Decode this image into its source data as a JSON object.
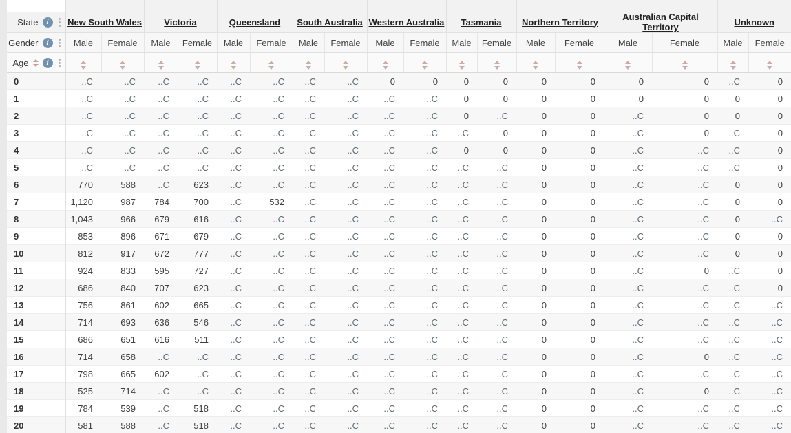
{
  "header": {
    "dims": [
      {
        "label": "State"
      },
      {
        "label": "Gender"
      },
      {
        "label": "Age"
      }
    ],
    "state_groups": [
      "New South Wales",
      "Victoria",
      "Queensland",
      "South Australia",
      "Western Australia",
      "Tasmania",
      "Northern Territory",
      "Australian Capital Territory",
      "Unknown"
    ],
    "gender_labels": [
      "Male",
      "Female"
    ]
  },
  "colors": {
    "info_icon": "#7191b1",
    "sort_idle": "#c9aca6",
    "sort_active": "#cb9a92",
    "header_bg": "#f2f2f2",
    "row_stripe": "#f7f7f7",
    "state_link": "#222222"
  },
  "confidential_marker": "..C",
  "table_rows": [
    {
      "age": "0",
      "values": [
        "..C",
        "..C",
        "..C",
        "..C",
        "..C",
        "..C",
        "..C",
        "..C",
        "0",
        "0",
        "0",
        "0",
        "0",
        "0",
        "0",
        "0",
        "..C",
        "0"
      ]
    },
    {
      "age": "1",
      "values": [
        "..C",
        "..C",
        "..C",
        "..C",
        "..C",
        "..C",
        "..C",
        "..C",
        "..C",
        "..C",
        "0",
        "0",
        "0",
        "0",
        "0",
        "0",
        "0",
        "0"
      ]
    },
    {
      "age": "2",
      "values": [
        "..C",
        "..C",
        "..C",
        "..C",
        "..C",
        "..C",
        "..C",
        "..C",
        "..C",
        "..C",
        "0",
        "..C",
        "0",
        "0",
        "..C",
        "0",
        "0",
        "0"
      ]
    },
    {
      "age": "3",
      "values": [
        "..C",
        "..C",
        "..C",
        "..C",
        "..C",
        "..C",
        "..C",
        "..C",
        "..C",
        "..C",
        "..C",
        "0",
        "0",
        "0",
        "..C",
        "0",
        "..C",
        "0"
      ]
    },
    {
      "age": "4",
      "values": [
        "..C",
        "..C",
        "..C",
        "..C",
        "..C",
        "..C",
        "..C",
        "..C",
        "..C",
        "..C",
        "0",
        "0",
        "0",
        "0",
        "..C",
        "..C",
        "..C",
        "0"
      ]
    },
    {
      "age": "5",
      "values": [
        "..C",
        "..C",
        "..C",
        "..C",
        "..C",
        "..C",
        "..C",
        "..C",
        "..C",
        "..C",
        "..C",
        "..C",
        "0",
        "0",
        "..C",
        "..C",
        "..C",
        "0"
      ]
    },
    {
      "age": "6",
      "values": [
        "770",
        "588",
        "..C",
        "623",
        "..C",
        "..C",
        "..C",
        "..C",
        "..C",
        "..C",
        "..C",
        "..C",
        "0",
        "0",
        "..C",
        "..C",
        "0",
        "0"
      ]
    },
    {
      "age": "7",
      "values": [
        "1,120",
        "987",
        "784",
        "700",
        "..C",
        "532",
        "..C",
        "..C",
        "..C",
        "..C",
        "..C",
        "..C",
        "0",
        "0",
        "..C",
        "..C",
        "0",
        "0"
      ]
    },
    {
      "age": "8",
      "values": [
        "1,043",
        "966",
        "679",
        "616",
        "..C",
        "..C",
        "..C",
        "..C",
        "..C",
        "..C",
        "..C",
        "..C",
        "0",
        "0",
        "..C",
        "..C",
        "0",
        "..C"
      ]
    },
    {
      "age": "9",
      "values": [
        "853",
        "896",
        "671",
        "679",
        "..C",
        "..C",
        "..C",
        "..C",
        "..C",
        "..C",
        "..C",
        "..C",
        "0",
        "0",
        "..C",
        "..C",
        "0",
        "0"
      ]
    },
    {
      "age": "10",
      "values": [
        "812",
        "917",
        "672",
        "777",
        "..C",
        "..C",
        "..C",
        "..C",
        "..C",
        "..C",
        "..C",
        "..C",
        "0",
        "0",
        "..C",
        "..C",
        "0",
        "0"
      ]
    },
    {
      "age": "11",
      "values": [
        "924",
        "833",
        "595",
        "727",
        "..C",
        "..C",
        "..C",
        "..C",
        "..C",
        "..C",
        "..C",
        "..C",
        "0",
        "0",
        "..C",
        "0",
        "..C",
        "0"
      ]
    },
    {
      "age": "12",
      "values": [
        "686",
        "840",
        "707",
        "623",
        "..C",
        "..C",
        "..C",
        "..C",
        "..C",
        "..C",
        "..C",
        "..C",
        "0",
        "0",
        "..C",
        "..C",
        "..C",
        "0"
      ]
    },
    {
      "age": "13",
      "values": [
        "756",
        "861",
        "602",
        "665",
        "..C",
        "..C",
        "..C",
        "..C",
        "..C",
        "..C",
        "..C",
        "..C",
        "0",
        "0",
        "..C",
        "..C",
        "..C",
        "..C"
      ]
    },
    {
      "age": "14",
      "values": [
        "714",
        "693",
        "636",
        "546",
        "..C",
        "..C",
        "..C",
        "..C",
        "..C",
        "..C",
        "..C",
        "..C",
        "0",
        "0",
        "..C",
        "..C",
        "..C",
        "..C"
      ]
    },
    {
      "age": "15",
      "values": [
        "686",
        "651",
        "616",
        "511",
        "..C",
        "..C",
        "..C",
        "..C",
        "..C",
        "..C",
        "..C",
        "..C",
        "0",
        "0",
        "..C",
        "..C",
        "..C",
        "..C"
      ]
    },
    {
      "age": "16",
      "values": [
        "714",
        "658",
        "..C",
        "..C",
        "..C",
        "..C",
        "..C",
        "..C",
        "..C",
        "..C",
        "..C",
        "..C",
        "0",
        "0",
        "..C",
        "0",
        "..C",
        "..C"
      ]
    },
    {
      "age": "17",
      "values": [
        "798",
        "665",
        "602",
        "..C",
        "..C",
        "..C",
        "..C",
        "..C",
        "..C",
        "..C",
        "..C",
        "..C",
        "0",
        "0",
        "..C",
        "..C",
        "..C",
        "..C"
      ]
    },
    {
      "age": "18",
      "values": [
        "525",
        "714",
        "..C",
        "..C",
        "..C",
        "..C",
        "..C",
        "..C",
        "..C",
        "..C",
        "..C",
        "..C",
        "0",
        "0",
        "..C",
        "0",
        "..C",
        "..C"
      ]
    },
    {
      "age": "19",
      "values": [
        "784",
        "539",
        "..C",
        "518",
        "..C",
        "..C",
        "..C",
        "..C",
        "..C",
        "..C",
        "..C",
        "..C",
        "0",
        "0",
        "..C",
        "..C",
        "..C",
        "..C"
      ]
    },
    {
      "age": "20",
      "values": [
        "581",
        "588",
        "..C",
        "518",
        "..C",
        "..C",
        "..C",
        "..C",
        "..C",
        "..C",
        "..C",
        "..C",
        "0",
        "0",
        "..C",
        "..C",
        "..C",
        "..C"
      ]
    }
  ]
}
